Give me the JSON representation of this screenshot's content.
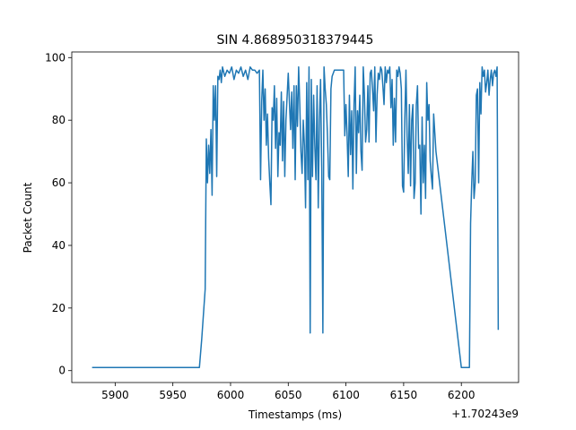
{
  "chart_data": {
    "type": "line",
    "title": "SIN 4.868950318379445",
    "x_label": "Timestamps (ms)",
    "y_label": "Packet Count",
    "x_offset_label": "+1.70243e9",
    "color": "#1f77b4",
    "xlim": [
      5862.4,
      6249.6
    ],
    "ylim": [
      -3.8,
      101.8
    ],
    "xticks": [
      5900,
      5950,
      6000,
      6050,
      6100,
      6150,
      6200
    ],
    "yticks": [
      0,
      20,
      40,
      60,
      80,
      100
    ],
    "x": [
      5880,
      5973,
      5975,
      5978,
      5979,
      5980,
      5981,
      5982,
      5983,
      5984,
      5985,
      5986,
      5987,
      5988,
      5989,
      5990,
      5991,
      5992,
      5993,
      5995,
      5997,
      5999,
      6001,
      6003,
      6005,
      6007,
      6009,
      6011,
      6013,
      6015,
      6017,
      6019,
      6021,
      6023,
      6025,
      6026,
      6027,
      6028,
      6029,
      6030,
      6031,
      6032,
      6033,
      6034,
      6035,
      6036,
      6037,
      6038,
      6039,
      6040,
      6041,
      6042,
      6043,
      6044,
      6045,
      6046,
      6047,
      6048,
      6050,
      6052,
      6053,
      6054,
      6055,
      6056,
      6057,
      6058,
      6059,
      6060,
      6061,
      6062,
      6063,
      6064,
      6065,
      6066,
      6067,
      6068,
      6069,
      6070,
      6071,
      6072,
      6073,
      6074,
      6075,
      6076,
      6077,
      6078,
      6079,
      6080,
      6081,
      6082,
      6083,
      6084,
      6085,
      6086,
      6087,
      6088,
      6090,
      6092,
      6094,
      6096,
      6098,
      6099,
      6100,
      6101,
      6102,
      6103,
      6104,
      6105,
      6106,
      6107,
      6108,
      6109,
      6110,
      6111,
      6112,
      6113,
      6114,
      6115,
      6116,
      6117,
      6118,
      6119,
      6120,
      6121,
      6122,
      6123,
      6124,
      6125,
      6126,
      6127,
      6128,
      6129,
      6130,
      6131,
      6132,
      6133,
      6134,
      6135,
      6136,
      6137,
      6138,
      6139,
      6140,
      6141,
      6142,
      6143,
      6144,
      6145,
      6146,
      6147,
      6148,
      6149,
      6150,
      6151,
      6152,
      6153,
      6154,
      6155,
      6156,
      6157,
      6158,
      6159,
      6160,
      6161,
      6162,
      6163,
      6164,
      6165,
      6166,
      6167,
      6168,
      6169,
      6170,
      6171,
      6172,
      6173,
      6174,
      6175,
      6176,
      6178,
      6200,
      6207,
      6208,
      6209,
      6210,
      6211,
      6212,
      6213,
      6214,
      6215,
      6216,
      6217,
      6218,
      6219,
      6220,
      6221,
      6222,
      6223,
      6224,
      6225,
      6226,
      6227,
      6228,
      6229,
      6230,
      6231,
      6232
    ],
    "values": [
      1,
      1,
      10,
      26,
      74,
      60,
      72,
      63,
      77,
      56,
      91,
      80,
      91,
      62,
      94,
      93,
      96,
      92,
      97,
      94,
      96,
      95,
      97,
      93,
      96,
      95,
      97,
      94,
      96,
      93,
      97,
      96,
      96,
      95,
      96,
      61,
      86,
      96,
      80,
      90,
      72,
      82,
      68,
      60,
      53,
      84,
      80,
      91,
      71,
      87,
      62,
      76,
      72,
      89,
      67,
      86,
      62,
      80,
      95,
      77,
      89,
      71,
      91,
      61,
      91,
      78,
      97,
      85,
      70,
      63,
      80,
      72,
      52,
      92,
      61,
      97,
      12,
      93,
      62,
      88,
      72,
      61,
      91,
      52,
      80,
      93,
      65,
      12,
      97,
      90,
      85,
      75,
      62,
      61,
      90,
      94,
      96,
      96,
      96,
      96,
      96,
      75,
      85,
      75,
      62,
      88,
      69,
      83,
      58,
      85,
      97,
      63,
      83,
      76,
      88,
      70,
      64,
      97,
      88,
      73,
      77,
      91,
      73,
      95,
      96,
      90,
      83,
      97,
      73,
      88,
      95,
      93,
      97,
      96,
      91,
      85,
      97,
      92,
      96,
      95,
      97,
      84,
      93,
      72,
      87,
      73,
      96,
      94,
      97,
      95,
      90,
      59,
      57,
      80,
      96,
      75,
      63,
      85,
      59,
      80,
      85,
      55,
      60,
      85,
      91,
      71,
      72,
      50,
      81,
      60,
      72,
      55,
      92,
      80,
      85,
      67,
      62,
      58,
      82,
      70,
      1,
      1,
      47,
      60,
      70,
      55,
      60,
      88,
      90,
      60,
      92,
      82,
      97,
      94,
      96,
      89,
      92,
      96,
      88,
      93,
      96,
      91,
      95,
      96,
      94,
      97,
      13
    ]
  }
}
